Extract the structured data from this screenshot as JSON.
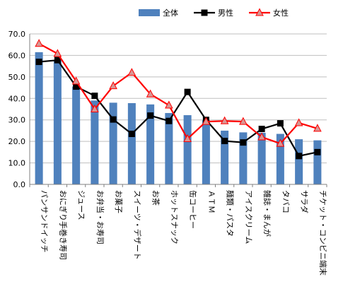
{
  "chart_data": {
    "type": "bar",
    "categories": [
      "パンサンドイッチ",
      "おにぎり手巻き寿司",
      "ジュース",
      "お弁当・お寿司",
      "お菓子",
      "スイーツ・デザート",
      "お茶",
      "ホットスナック",
      "缶コーヒー",
      "ＡＴＭ",
      "麺類・パスタ",
      "アイスクリーム",
      "雑誌・まんが",
      "タバコ",
      "サラダ",
      "チケット・コンビニ端末"
    ],
    "series": [
      {
        "name": "全体",
        "kind": "bar",
        "color": "#4f81bd",
        "values": [
          61.5,
          58.0,
          45.5,
          39.0,
          38.0,
          37.8,
          37.2,
          33.2,
          32.2,
          29.8,
          25.0,
          24.2,
          24.0,
          23.5,
          21.0,
          20.5
        ]
      },
      {
        "name": "男性",
        "kind": "line",
        "color": "#000000",
        "marker": "square",
        "values": [
          57.0,
          57.8,
          45.5,
          41.2,
          30.2,
          23.5,
          32.0,
          29.5,
          43.0,
          30.0,
          20.2,
          19.5,
          25.8,
          28.4,
          13.2,
          15.0
        ]
      },
      {
        "name": "女性",
        "kind": "line",
        "color": "#ff0000",
        "marker": "triangle",
        "markerColor": "#d99694",
        "values": [
          65.5,
          60.8,
          48.0,
          35.0,
          45.8,
          52.0,
          42.0,
          36.8,
          21.2,
          29.2,
          29.5,
          29.2,
          22.0,
          19.0,
          28.6,
          26.0
        ]
      }
    ],
    "yTickLabels": [
      "0.0",
      "10.0",
      "20.0",
      "30.0",
      "40.0",
      "50.0",
      "60.0",
      "70.0"
    ],
    "ylim": [
      0,
      70
    ],
    "title": "",
    "xlabel": "",
    "ylabel": "",
    "grid": true,
    "legend": "top-right"
  }
}
